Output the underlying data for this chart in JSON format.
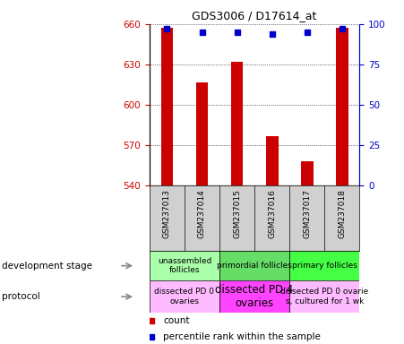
{
  "title": "GDS3006 / D17614_at",
  "samples": [
    "GSM237013",
    "GSM237014",
    "GSM237015",
    "GSM237016",
    "GSM237017",
    "GSM237018"
  ],
  "counts": [
    657,
    617,
    632,
    577,
    558,
    657
  ],
  "percentile_ranks": [
    97,
    95,
    95,
    94,
    95,
    97
  ],
  "ylim_left": [
    540,
    660
  ],
  "ylim_right": [
    0,
    100
  ],
  "yticks_left": [
    540,
    570,
    600,
    630,
    660
  ],
  "yticks_right": [
    0,
    25,
    50,
    75,
    100
  ],
  "bar_color": "#cc0000",
  "dot_color": "#0000cc",
  "development_stage_groups": [
    {
      "label": "unassembled\nfollicles",
      "cols": [
        0,
        1
      ],
      "color": "#aaffaa"
    },
    {
      "label": "primordial follicles",
      "cols": [
        2,
        3
      ],
      "color": "#66dd66"
    },
    {
      "label": "primary follicles",
      "cols": [
        4,
        5
      ],
      "color": "#44ff44"
    }
  ],
  "protocol_groups": [
    {
      "label": "dissected PD 0\novaries",
      "cols": [
        0,
        1
      ],
      "color": "#ffbbff"
    },
    {
      "label": "dissected PD 4\novaries",
      "cols": [
        2,
        3
      ],
      "color": "#ff44ff"
    },
    {
      "label": "dissected PD 0 ovarie\ns, cultured for 1 wk",
      "cols": [
        4,
        5
      ],
      "color": "#ffbbff"
    }
  ],
  "sample_bg_color": "#d0d0d0",
  "legend_count_color": "#cc0000",
  "legend_pct_color": "#0000cc",
  "left_label_dev": "development stage",
  "left_label_prot": "protocol",
  "tick_label_color_left": "#cc0000",
  "tick_label_color_right": "#0000cc"
}
